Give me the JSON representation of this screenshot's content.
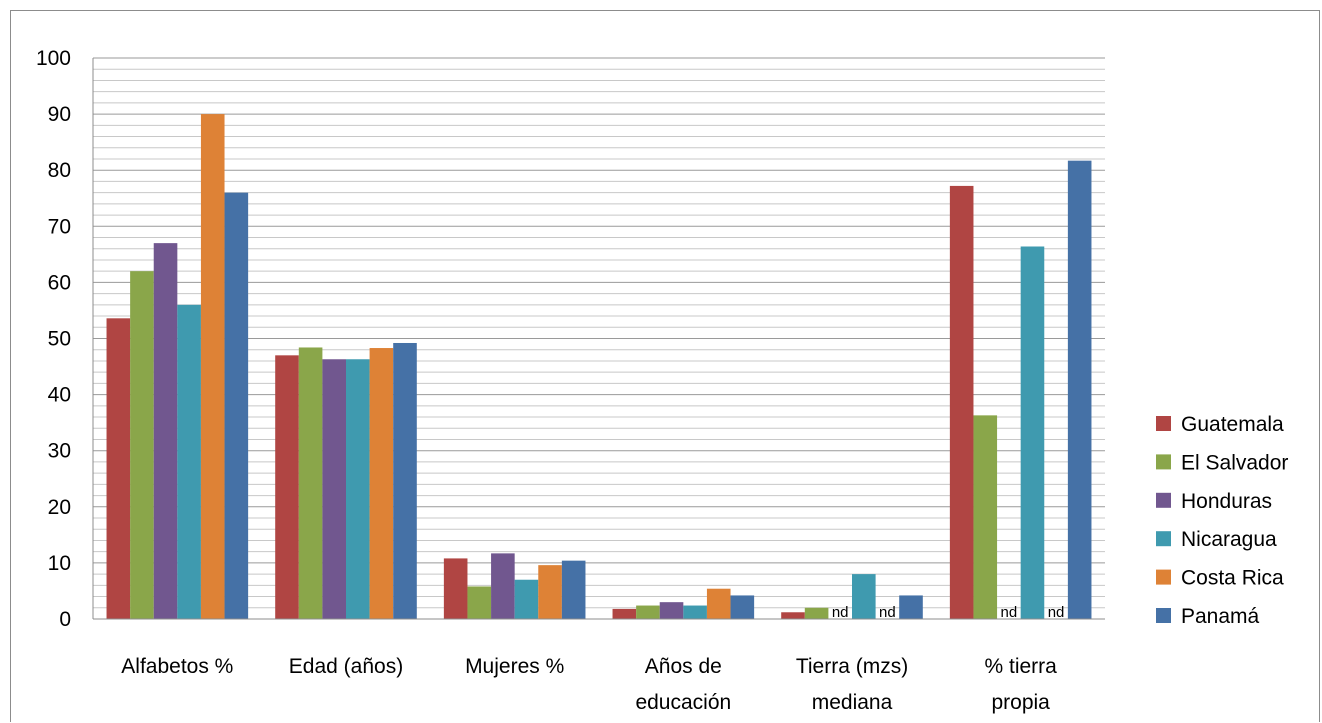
{
  "chart_data": {
    "type": "bar",
    "categories": [
      [
        "Alfabetos %"
      ],
      [
        "Edad (años)"
      ],
      [
        "Mujeres %"
      ],
      [
        "Años de",
        "educación"
      ],
      [
        "Tierra (mzs)",
        "mediana"
      ],
      [
        "% tierra",
        "propia"
      ]
    ],
    "series": [
      {
        "name": "Guatemala",
        "color": "#b04543",
        "values": [
          53.6,
          47.0,
          10.8,
          1.8,
          1.2,
          77.2
        ]
      },
      {
        "name": "El Salvador",
        "color": "#8aa64a",
        "values": [
          62.0,
          48.4,
          5.8,
          2.4,
          2.0,
          36.3
        ]
      },
      {
        "name": "Honduras",
        "color": "#71578f",
        "values": [
          67.0,
          46.3,
          11.7,
          3.0,
          null,
          null
        ]
      },
      {
        "name": "Nicaragua",
        "color": "#3f9aaf",
        "values": [
          56.0,
          46.3,
          7.0,
          2.4,
          8.0,
          66.4
        ]
      },
      {
        "name": "Costa Rica",
        "color": "#de8236",
        "values": [
          90.0,
          48.3,
          9.6,
          5.4,
          null,
          null
        ]
      },
      {
        "name": "Panamá",
        "color": "#4571a6",
        "values": [
          76.0,
          49.2,
          10.4,
          4.2,
          4.2,
          81.7
        ]
      }
    ],
    "missing_label": "nd",
    "y_ticks": [
      0,
      10,
      20,
      30,
      40,
      50,
      60,
      70,
      80,
      90,
      100
    ],
    "ylim": [
      0,
      100
    ],
    "minor_gridlines": true,
    "legend_position": "right"
  }
}
